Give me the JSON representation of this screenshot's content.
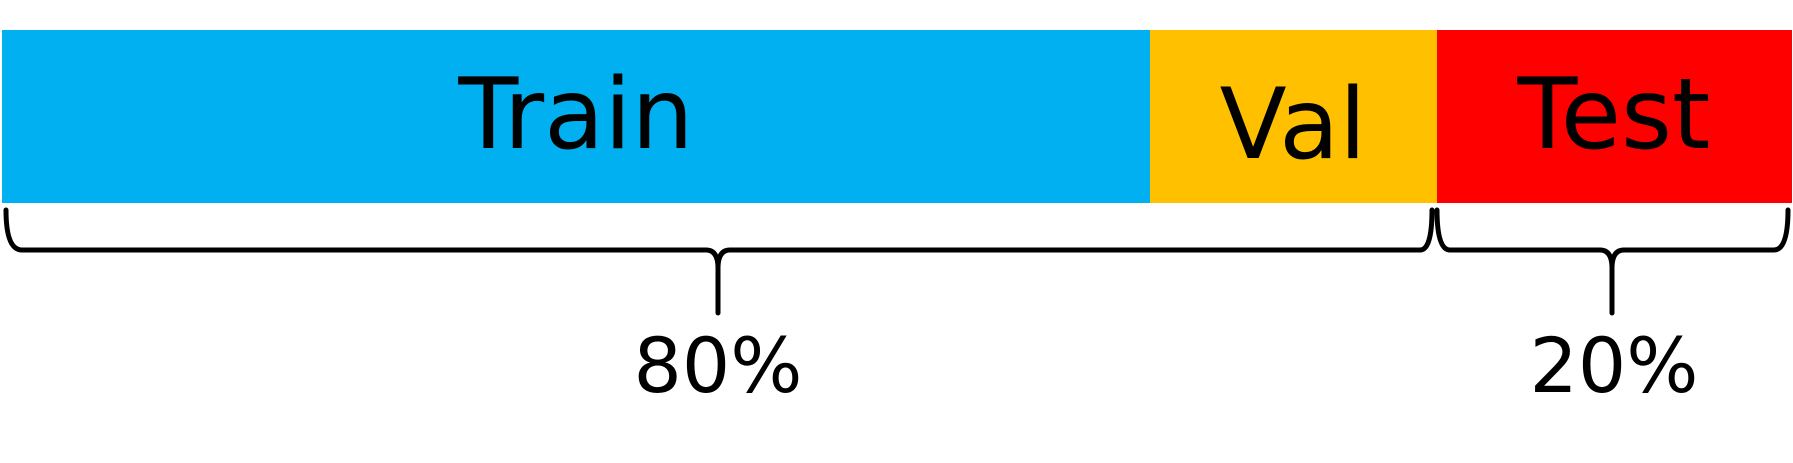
{
  "segments": [
    {
      "label": "Train",
      "color": "#00B0F0"
    },
    {
      "label": "Val",
      "color": "#FFC000"
    },
    {
      "label": "Test",
      "color": "#FF0000"
    }
  ],
  "brackets": [
    {
      "label": "80%"
    },
    {
      "label": "20%"
    }
  ]
}
